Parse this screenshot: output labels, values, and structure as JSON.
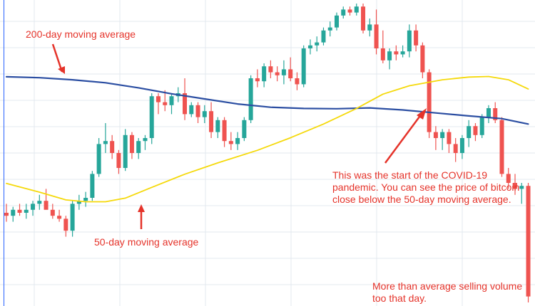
{
  "annotations": {
    "ma200": "200-day moving average",
    "ma50": "50-day moving average",
    "covid": "This was the start of the COVID-19 pandemic. You can see the price of bitcoin close below the 50-day moving average.",
    "volume": "More than average selling volume too that day."
  },
  "colors": {
    "up": "#26a69a",
    "down": "#ef5350",
    "ma200": "#2b4ea2",
    "ma50": "#f5d90a",
    "annotation": "#e5332a",
    "grid": "#e3e8ef",
    "border": "#2962ff"
  },
  "chart_data": {
    "type": "candlestick",
    "title": "",
    "xlabel": "",
    "ylabel": "",
    "grid": true,
    "ylim": [
      0,
      100
    ],
    "candles": [
      {
        "o": 30,
        "h": 33,
        "l": 27,
        "c": 29
      },
      {
        "o": 29,
        "h": 32,
        "l": 27,
        "c": 31
      },
      {
        "o": 31,
        "h": 33,
        "l": 29,
        "c": 30
      },
      {
        "o": 30,
        "h": 33,
        "l": 28,
        "c": 31
      },
      {
        "o": 31,
        "h": 34,
        "l": 29,
        "c": 33
      },
      {
        "o": 33,
        "h": 36,
        "l": 31,
        "c": 34
      },
      {
        "o": 34,
        "h": 38,
        "l": 32,
        "c": 31
      },
      {
        "o": 31,
        "h": 33,
        "l": 28,
        "c": 29
      },
      {
        "o": 29,
        "h": 31,
        "l": 27,
        "c": 28
      },
      {
        "o": 28,
        "h": 29,
        "l": 22,
        "c": 24
      },
      {
        "o": 24,
        "h": 34,
        "l": 22,
        "c": 33
      },
      {
        "o": 33,
        "h": 36,
        "l": 31,
        "c": 34
      },
      {
        "o": 34,
        "h": 37,
        "l": 32,
        "c": 35
      },
      {
        "o": 35,
        "h": 44,
        "l": 34,
        "c": 43
      },
      {
        "o": 43,
        "h": 55,
        "l": 42,
        "c": 53
      },
      {
        "o": 53,
        "h": 60,
        "l": 50,
        "c": 54
      },
      {
        "o": 54,
        "h": 56,
        "l": 48,
        "c": 50
      },
      {
        "o": 50,
        "h": 51,
        "l": 43,
        "c": 45
      },
      {
        "o": 45,
        "h": 58,
        "l": 44,
        "c": 56
      },
      {
        "o": 56,
        "h": 57,
        "l": 48,
        "c": 50
      },
      {
        "o": 50,
        "h": 55,
        "l": 48,
        "c": 54
      },
      {
        "o": 54,
        "h": 56,
        "l": 51,
        "c": 55
      },
      {
        "o": 55,
        "h": 70,
        "l": 53,
        "c": 69
      },
      {
        "o": 69,
        "h": 70,
        "l": 63,
        "c": 67
      },
      {
        "o": 67,
        "h": 71,
        "l": 64,
        "c": 66
      },
      {
        "o": 66,
        "h": 70,
        "l": 63,
        "c": 69
      },
      {
        "o": 69,
        "h": 72,
        "l": 67,
        "c": 70
      },
      {
        "o": 70,
        "h": 75,
        "l": 61,
        "c": 63
      },
      {
        "o": 63,
        "h": 67,
        "l": 62,
        "c": 66
      },
      {
        "o": 66,
        "h": 67,
        "l": 60,
        "c": 62
      },
      {
        "o": 62,
        "h": 66,
        "l": 60,
        "c": 64
      },
      {
        "o": 64,
        "h": 67,
        "l": 55,
        "c": 57
      },
      {
        "o": 57,
        "h": 62,
        "l": 55,
        "c": 61
      },
      {
        "o": 61,
        "h": 62,
        "l": 52,
        "c": 54
      },
      {
        "o": 54,
        "h": 57,
        "l": 51,
        "c": 53
      },
      {
        "o": 53,
        "h": 57,
        "l": 51,
        "c": 55
      },
      {
        "o": 55,
        "h": 62,
        "l": 54,
        "c": 61
      },
      {
        "o": 61,
        "h": 76,
        "l": 60,
        "c": 75
      },
      {
        "o": 75,
        "h": 78,
        "l": 72,
        "c": 74
      },
      {
        "o": 74,
        "h": 80,
        "l": 72,
        "c": 79
      },
      {
        "o": 79,
        "h": 81,
        "l": 75,
        "c": 77
      },
      {
        "o": 77,
        "h": 79,
        "l": 74,
        "c": 76
      },
      {
        "o": 76,
        "h": 81,
        "l": 73,
        "c": 78
      },
      {
        "o": 78,
        "h": 82,
        "l": 74,
        "c": 75
      },
      {
        "o": 75,
        "h": 77,
        "l": 71,
        "c": 73
      },
      {
        "o": 73,
        "h": 86,
        "l": 72,
        "c": 85
      },
      {
        "o": 85,
        "h": 88,
        "l": 83,
        "c": 86
      },
      {
        "o": 86,
        "h": 89,
        "l": 84,
        "c": 87
      },
      {
        "o": 87,
        "h": 92,
        "l": 86,
        "c": 91
      },
      {
        "o": 91,
        "h": 94,
        "l": 89,
        "c": 92
      },
      {
        "o": 92,
        "h": 97,
        "l": 91,
        "c": 96
      },
      {
        "o": 96,
        "h": 99,
        "l": 95,
        "c": 98
      },
      {
        "o": 98,
        "h": 99,
        "l": 96,
        "c": 97
      },
      {
        "o": 97,
        "h": 100,
        "l": 96,
        "c": 99
      },
      {
        "o": 99,
        "h": 100,
        "l": 90,
        "c": 91
      },
      {
        "o": 91,
        "h": 95,
        "l": 89,
        "c": 93
      },
      {
        "o": 93,
        "h": 98,
        "l": 83,
        "c": 85
      },
      {
        "o": 85,
        "h": 91,
        "l": 80,
        "c": 81
      },
      {
        "o": 81,
        "h": 85,
        "l": 78,
        "c": 84
      },
      {
        "o": 84,
        "h": 86,
        "l": 81,
        "c": 83
      },
      {
        "o": 83,
        "h": 86,
        "l": 82,
        "c": 84
      },
      {
        "o": 84,
        "h": 93,
        "l": 82,
        "c": 91
      },
      {
        "o": 91,
        "h": 93,
        "l": 84,
        "c": 86
      },
      {
        "o": 86,
        "h": 87,
        "l": 75,
        "c": 77
      },
      {
        "o": 77,
        "h": 78,
        "l": 55,
        "c": 57
      },
      {
        "o": 57,
        "h": 59,
        "l": 51,
        "c": 55
      },
      {
        "o": 55,
        "h": 58,
        "l": 51,
        "c": 57
      },
      {
        "o": 57,
        "h": 58,
        "l": 50,
        "c": 53
      },
      {
        "o": 53,
        "h": 55,
        "l": 47,
        "c": 50
      },
      {
        "o": 50,
        "h": 56,
        "l": 48,
        "c": 55
      },
      {
        "o": 55,
        "h": 61,
        "l": 52,
        "c": 59
      },
      {
        "o": 59,
        "h": 60,
        "l": 54,
        "c": 56
      },
      {
        "o": 56,
        "h": 63,
        "l": 55,
        "c": 62
      },
      {
        "o": 62,
        "h": 66,
        "l": 60,
        "c": 65
      },
      {
        "o": 65,
        "h": 67,
        "l": 60,
        "c": 61
      },
      {
        "o": 61,
        "h": 62,
        "l": 42,
        "c": 43
      },
      {
        "o": 43,
        "h": 45,
        "l": 38,
        "c": 40
      },
      {
        "o": 40,
        "h": 43,
        "l": 36,
        "c": 38
      },
      {
        "o": 38,
        "h": 40,
        "l": 33,
        "c": 39
      },
      {
        "o": 39,
        "h": 40,
        "l": 0,
        "c": 2
      }
    ],
    "series": [
      {
        "name": "200-day moving average",
        "values": [
          [
            0,
            75.5
          ],
          [
            5,
            75.2
          ],
          [
            10,
            74.5
          ],
          [
            15,
            73.5
          ],
          [
            20,
            71.8
          ],
          [
            25,
            69.8
          ],
          [
            30,
            68.1
          ],
          [
            35,
            66.4
          ],
          [
            40,
            65.3
          ],
          [
            45,
            64.9
          ],
          [
            50,
            64.8
          ],
          [
            55,
            65.1
          ],
          [
            60,
            64.4
          ],
          [
            65,
            63.4
          ],
          [
            70,
            62.4
          ],
          [
            75,
            61.5
          ],
          [
            79,
            59.7
          ]
        ]
      },
      {
        "name": "50-day moving average",
        "values": [
          [
            0,
            39.8
          ],
          [
            5,
            36.9
          ],
          [
            9,
            34.3
          ],
          [
            12,
            33.7
          ],
          [
            15,
            33.7
          ],
          [
            18,
            34.9
          ],
          [
            22,
            38.5
          ],
          [
            27,
            42.9
          ],
          [
            32,
            46.7
          ],
          [
            38,
            50.9
          ],
          [
            43,
            55.1
          ],
          [
            48,
            59.7
          ],
          [
            53,
            64.9
          ],
          [
            57,
            69.7
          ],
          [
            61,
            72.5
          ],
          [
            66,
            74.5
          ],
          [
            70,
            75.4
          ],
          [
            73,
            75.6
          ],
          [
            76,
            74.5
          ],
          [
            79,
            71.4
          ]
        ]
      }
    ]
  }
}
